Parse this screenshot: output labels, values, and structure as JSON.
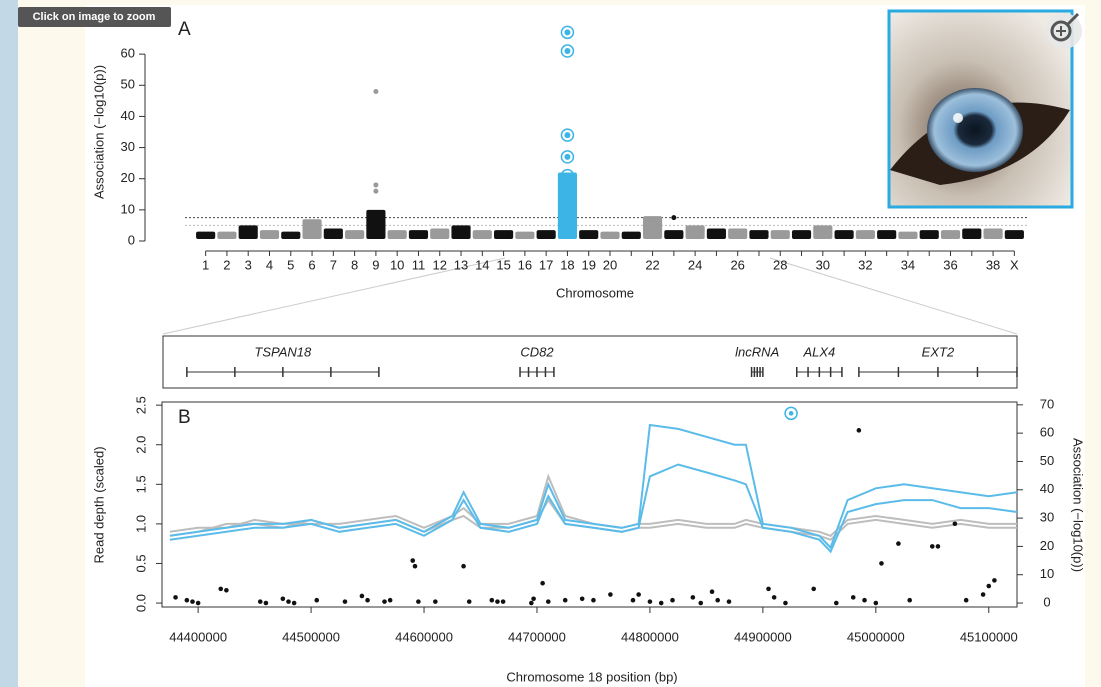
{
  "ui": {
    "zoom_hint": "Click on image to zoom"
  },
  "chart_data": [
    {
      "type": "manhattan",
      "panel_label": "A",
      "y_label": "Association (−log10(p))",
      "x_label": "Chromosome",
      "categories": [
        "1",
        "2",
        "3",
        "4",
        "5",
        "6",
        "7",
        "8",
        "9",
        "10",
        "11",
        "12",
        "13",
        "14",
        "15",
        "16",
        "17",
        "18",
        "19",
        "20",
        null,
        "22",
        null,
        "24",
        null,
        "26",
        null,
        "28",
        null,
        "30",
        null,
        "32",
        null,
        "34",
        null,
        "36",
        null,
        "38",
        "X"
      ],
      "values": [
        3,
        3,
        5,
        3.5,
        3,
        7,
        4,
        3.5,
        10,
        3.5,
        3.5,
        4,
        5,
        3.5,
        3.5,
        3,
        3.5,
        22,
        3.5,
        3,
        3,
        8,
        3.5,
        5,
        4,
        4,
        3.5,
        3.5,
        3.5,
        5,
        3.5,
        3.5,
        3.5,
        3,
        3.5,
        3.5,
        4,
        4,
        3.5
      ],
      "colors": [
        "#111111",
        "#9a9a9a"
      ],
      "highlight_x": 18,
      "highlight_color": "#3cb4e5",
      "points": {
        "x": [
          9,
          9,
          9,
          18,
          18,
          18,
          18,
          18,
          18,
          23
        ],
        "values": [
          48,
          18,
          16,
          67,
          61,
          34,
          27,
          21,
          18,
          7.5
        ]
      },
      "thresholds": [
        7.5,
        5
      ],
      "xlim": [
        0.5,
        39.5
      ],
      "ylim": [
        0,
        70
      ],
      "yticks": [
        0,
        10,
        20,
        30,
        40,
        50,
        60
      ]
    },
    {
      "type": "line",
      "panel_label": "B",
      "y_label": "Read depth (scaled)",
      "y2_label": "Association (−log10(p))",
      "x_label": "Chromosome 18 position (bp)",
      "genes": [
        {
          "name": "TSPAN18",
          "start": 44390000,
          "end": 44560000
        },
        {
          "name": "CD82",
          "start": 44685000,
          "end": 44715000
        },
        {
          "name": "lncRNA",
          "start": 44890000,
          "end": 44900000
        },
        {
          "name": "ALX4",
          "start": 44930000,
          "end": 44970000
        },
        {
          "name": "EXT2",
          "start": 44985000,
          "end": 45125000
        }
      ],
      "x": [
        44375000,
        44400000,
        44425000,
        44450000,
        44475000,
        44500000,
        44525000,
        44550000,
        44575000,
        44600000,
        44625000,
        44635000,
        44650000,
        44675000,
        44700000,
        44710000,
        44725000,
        44750000,
        44775000,
        44790000,
        44800000,
        44825000,
        44850000,
        44875000,
        44885000,
        44900000,
        44925000,
        44950000,
        44960000,
        44975000,
        45000000,
        45025000,
        45050000,
        45075000,
        45100000,
        45125000
      ],
      "series": [
        {
          "color": "#bdbdbd",
          "values": [
            0.9,
            0.95,
            0.95,
            1.05,
            1.0,
            1.0,
            1.0,
            1.05,
            1.1,
            0.95,
            1.1,
            1.2,
            1.0,
            1.0,
            1.1,
            1.6,
            1.1,
            1.0,
            0.95,
            1.0,
            1.0,
            1.05,
            1.0,
            1.0,
            1.05,
            1.0,
            0.95,
            0.9,
            0.85,
            1.05,
            1.1,
            1.05,
            1.0,
            1.05,
            1.0,
            1.0
          ]
        },
        {
          "color": "#bdbdbd",
          "values": [
            0.85,
            0.9,
            1.0,
            1.0,
            0.95,
            1.05,
            0.95,
            1.0,
            1.05,
            0.9,
            1.05,
            1.1,
            0.95,
            0.95,
            1.05,
            1.3,
            1.0,
            0.95,
            0.9,
            0.95,
            0.95,
            1.0,
            0.95,
            0.95,
            1.0,
            0.95,
            0.9,
            0.85,
            0.8,
            1.0,
            1.05,
            1.0,
            0.95,
            1.0,
            0.95,
            0.95
          ]
        },
        {
          "color": "#5bbbe9",
          "values": [
            0.85,
            0.9,
            0.95,
            1.0,
            1.0,
            1.05,
            0.95,
            1.0,
            1.05,
            0.9,
            1.1,
            1.4,
            1.0,
            0.95,
            1.05,
            1.5,
            1.05,
            1.0,
            0.95,
            1.0,
            2.25,
            2.2,
            2.1,
            2.0,
            2.0,
            1.0,
            0.95,
            0.85,
            0.7,
            1.3,
            1.45,
            1.5,
            1.45,
            1.4,
            1.35,
            1.4
          ]
        },
        {
          "color": "#5bbbe9",
          "values": [
            0.8,
            0.85,
            0.9,
            0.95,
            0.95,
            1.0,
            0.9,
            0.95,
            1.0,
            0.85,
            1.05,
            1.3,
            0.95,
            0.9,
            1.0,
            1.35,
            1.0,
            0.95,
            0.9,
            0.95,
            1.6,
            1.75,
            1.65,
            1.55,
            1.5,
            0.95,
            0.9,
            0.8,
            0.65,
            1.15,
            1.25,
            1.3,
            1.3,
            1.2,
            1.2,
            1.15
          ]
        }
      ],
      "dots": [
        {
          "axis": "y2",
          "color": "#111111",
          "x": [
            44380000,
            44390000,
            44395000,
            44400000,
            44420000,
            44425000,
            44455000,
            44460000,
            44475000,
            44480000,
            44485000,
            44505000,
            44530000,
            44545000,
            44550000,
            44565000,
            44570000,
            44590000,
            44592000,
            44595000,
            44610000,
            44635000,
            44640000,
            44660000,
            44665000,
            44670000,
            44695000,
            44697000,
            44705000,
            44710000,
            44725000,
            44740000,
            44750000,
            44765000,
            44785000,
            44790000,
            44800000,
            44810000,
            44820000,
            44838000,
            44845000,
            44855000,
            44860000,
            44870000,
            44905000,
            44910000,
            44920000,
            44945000,
            44965000,
            44980000,
            44985000,
            44990000,
            45000000,
            45005000,
            45020000,
            45030000,
            45050000,
            45055000,
            45070000,
            45080000,
            45095000,
            45100000,
            45105000
          ],
          "values": [
            2,
            1,
            0.5,
            0,
            5,
            4.5,
            0.5,
            0,
            1.5,
            0.5,
            0,
            1,
            0.5,
            2.5,
            1,
            0.5,
            1,
            15,
            13,
            0.5,
            0.5,
            13,
            0.5,
            1,
            0.5,
            0.5,
            0,
            1.5,
            7,
            0.5,
            1,
            1.5,
            1,
            3,
            1,
            3,
            0.5,
            0,
            1,
            2,
            0,
            4,
            1,
            0.5,
            5,
            2,
            0,
            5,
            0,
            2,
            61,
            1,
            0,
            14,
            21,
            1,
            20,
            20,
            28,
            1,
            3,
            6,
            8
          ]
        },
        {
          "axis": "y2",
          "color": "#3cb4e5",
          "ring": true,
          "x": [
            44925000
          ],
          "values": [
            67
          ]
        }
      ],
      "xlim": [
        44368000,
        45125000
      ],
      "xticks": [
        44400000,
        44500000,
        44600000,
        44700000,
        44800000,
        44900000,
        45000000,
        45100000
      ],
      "ylim": [
        -0.05,
        2.54
      ],
      "yticks": [
        {
          "value": 0,
          "label": "0.0"
        },
        0.5,
        {
          "value": 1,
          "label": "1.0"
        },
        1.5,
        {
          "value": 2,
          "label": "2.0"
        },
        2.5
      ],
      "y2lim": [
        -1.4,
        71
      ],
      "y2ticks": [
        0,
        10,
        20,
        30,
        40,
        50,
        60,
        70
      ]
    }
  ]
}
